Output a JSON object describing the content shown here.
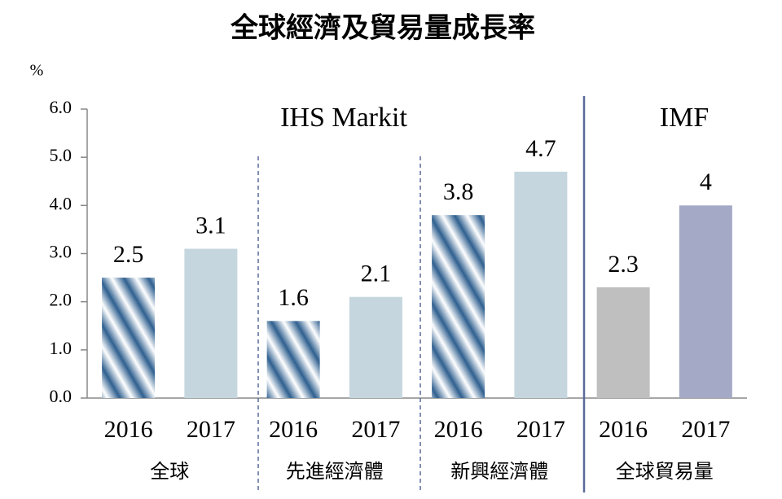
{
  "chart_data": {
    "type": "bar",
    "title": "全球經濟及貿易量成長率",
    "y_label": "%",
    "annotations": [
      "IHS Markit",
      "IMF"
    ],
    "ylim": [
      0,
      6
    ],
    "yticks": [
      {
        "value": 0,
        "label": "0.0"
      },
      {
        "value": 1,
        "label": "1.0"
      },
      {
        "value": 2,
        "label": "2.0"
      },
      {
        "value": 3,
        "label": "3.0"
      },
      {
        "value": 4,
        "label": "4.0"
      },
      {
        "value": 5,
        "label": "5.0"
      },
      {
        "value": 6,
        "label": "6.0"
      }
    ],
    "groups": [
      {
        "name": "全球",
        "categories": [
          "2016",
          "2017"
        ],
        "values": [
          2.5,
          3.1
        ],
        "colors": [
          "#2e5f8f",
          "#c5d6de"
        ],
        "hatched": [
          true,
          false
        ]
      },
      {
        "name": "先進經濟體",
        "categories": [
          "2016",
          "2017"
        ],
        "values": [
          1.6,
          2.1
        ],
        "colors": [
          "#2e5f8f",
          "#c5d6de"
        ],
        "hatched": [
          true,
          false
        ]
      },
      {
        "name": "新興經濟體",
        "categories": [
          "2016",
          "2017"
        ],
        "values": [
          3.8,
          4.7
        ],
        "colors": [
          "#2e5f8f",
          "#c5d6de"
        ],
        "hatched": [
          true,
          false
        ]
      },
      {
        "name": "全球貿易量",
        "categories": [
          "2016",
          "2017"
        ],
        "values": [
          2.3,
          4
        ],
        "colors": [
          "#bfbfbf",
          "#a4aac6"
        ],
        "hatched": [
          false,
          false
        ]
      }
    ]
  }
}
